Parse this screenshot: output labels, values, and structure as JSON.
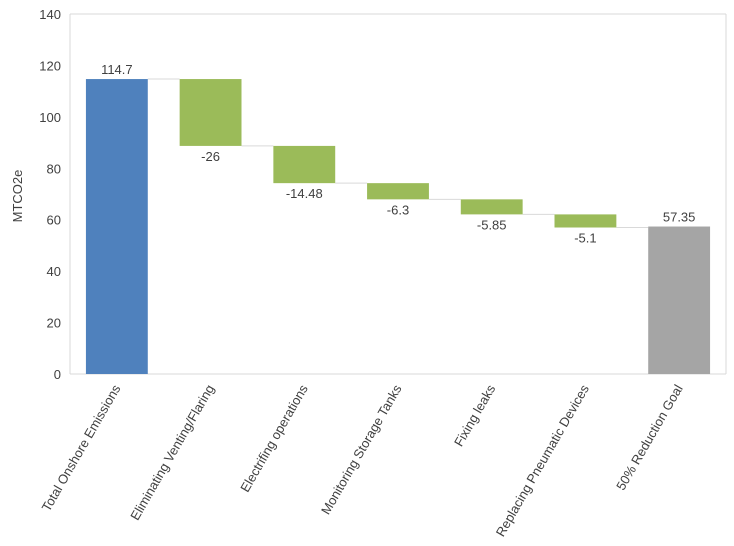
{
  "chart_data": {
    "type": "bar",
    "subtype": "waterfall",
    "title": "",
    "xlabel": "",
    "ylabel": "MTCO2e",
    "ylim": [
      0,
      140
    ],
    "yticks": [
      0,
      20,
      40,
      60,
      80,
      100,
      120,
      140
    ],
    "grid": false,
    "legend": "none",
    "categories": [
      "Total Onshore Emissions",
      "Eliminating Venting/Flaring",
      "Electrifing operations",
      "Monitoring Storage Tanks",
      "Fixing leaks",
      "Replacing Pneumatic Devices",
      "50% Reduction Goal"
    ],
    "values": [
      114.7,
      -26,
      -14.48,
      -6.3,
      -5.85,
      -5.1,
      57.35
    ],
    "value_labels": [
      "114.7",
      "-26",
      "-14.48",
      "-6.3",
      "-5.85",
      "-5.1",
      "57.35"
    ],
    "kinds": [
      "total",
      "delta",
      "delta",
      "delta",
      "delta",
      "delta",
      "total"
    ],
    "colors": {
      "start_total": "#4F81BD",
      "decrease": "#9BBB59",
      "end_total": "#A5A5A5",
      "connector": "#D9D9D9",
      "axis": "#D9D9D9",
      "text": "#404040"
    }
  }
}
